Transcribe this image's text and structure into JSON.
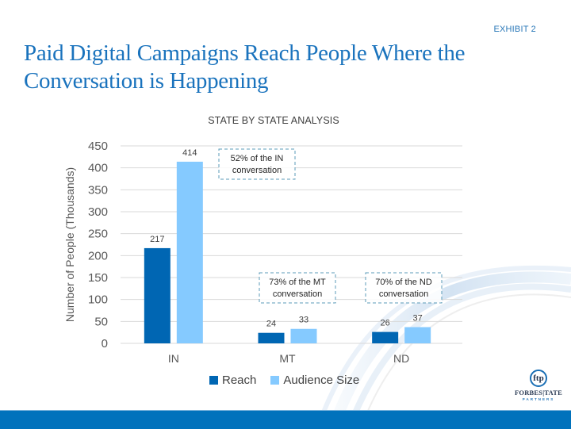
{
  "slide": {
    "exhibit_label": "EXHIBIT 2",
    "title": "Paid Digital Campaigns Reach People Where the Conversation is Happening",
    "logo": {
      "monogram": "ftp",
      "name": "FORBES|TATE",
      "subtitle": "PARTNERS"
    }
  },
  "colors": {
    "title": "#1a73bd",
    "reach": "#0066b3",
    "audience_size": "#85caff",
    "footer_bar": "#0172bc",
    "annotation_border": "#5b9bb8"
  },
  "chart_data": {
    "type": "bar",
    "title": "STATE BY STATE ANALYSIS",
    "xlabel": "",
    "ylabel": "Number of People (Thousands)",
    "categories": [
      "IN",
      "MT",
      "ND"
    ],
    "series": [
      {
        "name": "Reach",
        "values": [
          217,
          24,
          26
        ],
        "color": "#0066b3"
      },
      {
        "name": "Audience Size",
        "values": [
          414,
          33,
          37
        ],
        "color": "#85caff"
      }
    ],
    "ylim": [
      0,
      450
    ],
    "yticks": [
      0,
      50,
      100,
      150,
      200,
      250,
      300,
      350,
      400,
      450
    ],
    "grid": true,
    "legend": "bottom",
    "annotations": [
      {
        "category": "IN",
        "line1": "52% of the IN",
        "line2": "conversation"
      },
      {
        "category": "MT",
        "line1": "73% of the MT",
        "line2": "conversation"
      },
      {
        "category": "ND",
        "line1": "70% of the ND",
        "line2": "conversation"
      }
    ]
  }
}
